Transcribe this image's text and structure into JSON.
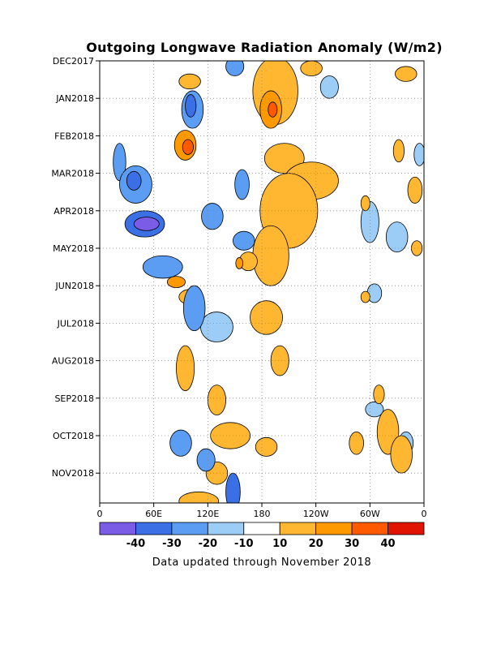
{
  "chart_data": {
    "type": "heatmap",
    "title": "Outgoing Longwave Radiation Anomaly (W/m2)",
    "note": "Data updated through November 2018",
    "y_axis": {
      "direction": "time increasing downward",
      "ticks": [
        "DEC2017",
        "JAN2018",
        "FEB2018",
        "MAR2018",
        "APR2018",
        "MAY2018",
        "JUN2018",
        "JUL2018",
        "AUG2018",
        "SEP2018",
        "OCT2018",
        "NOV2018"
      ]
    },
    "x_axis": {
      "range_deg_east": [
        0,
        360
      ],
      "ticks": [
        {
          "lon": 0,
          "label": "0"
        },
        {
          "lon": 60,
          "label": "60E"
        },
        {
          "lon": 120,
          "label": "120E"
        },
        {
          "lon": 180,
          "label": "180"
        },
        {
          "lon": 240,
          "label": "120W"
        },
        {
          "lon": 300,
          "label": "60W"
        },
        {
          "lon": 360,
          "label": "0"
        }
      ]
    },
    "grid": true,
    "colorbar": {
      "colors": [
        "#7a5ce6",
        "#3b6fe6",
        "#5a9df2",
        "#9ccdf6",
        "#ffffff",
        "#ffb732",
        "#ff9900",
        "#ff5a00",
        "#e01400"
      ],
      "labels": [
        "-40",
        "-30",
        "-20",
        "-10",
        "10",
        "20",
        "30",
        "40"
      ]
    },
    "anomaly_regions": [
      {
        "lon": 22,
        "t": 2.7,
        "rx": 7,
        "ry": 0.5,
        "lvl": -2
      },
      {
        "lon": 40,
        "t": 3.3,
        "rx": 18,
        "ry": 0.5,
        "lvl": -2
      },
      {
        "lon": 38,
        "t": 3.2,
        "rx": 8,
        "ry": 0.25,
        "lvl": -3
      },
      {
        "lon": 50,
        "t": 4.35,
        "rx": 22,
        "ry": 0.35,
        "lvl": -3
      },
      {
        "lon": 52,
        "t": 4.35,
        "rx": 14,
        "ry": 0.18,
        "lvl": -4
      },
      {
        "lon": 70,
        "t": 5.5,
        "rx": 22,
        "ry": 0.3,
        "lvl": -2
      },
      {
        "lon": 103,
        "t": 1.3,
        "rx": 12,
        "ry": 0.5,
        "lvl": -2
      },
      {
        "lon": 101,
        "t": 1.2,
        "rx": 6,
        "ry": 0.3,
        "lvl": -3
      },
      {
        "lon": 125,
        "t": 4.15,
        "rx": 12,
        "ry": 0.35,
        "lvl": -2
      },
      {
        "lon": 158,
        "t": 3.3,
        "rx": 8,
        "ry": 0.4,
        "lvl": -2
      },
      {
        "lon": 160,
        "t": 4.8,
        "rx": 12,
        "ry": 0.25,
        "lvl": -2
      },
      {
        "lon": 105,
        "t": 6.6,
        "rx": 12,
        "ry": 0.6,
        "lvl": -2
      },
      {
        "lon": 130,
        "t": 7.1,
        "rx": 18,
        "ry": 0.4,
        "lvl": -1
      },
      {
        "lon": 90,
        "t": 10.2,
        "rx": 12,
        "ry": 0.35,
        "lvl": -2
      },
      {
        "lon": 118,
        "t": 10.65,
        "rx": 10,
        "ry": 0.3,
        "lvl": -2
      },
      {
        "lon": 148,
        "t": 11.5,
        "rx": 8,
        "ry": 0.5,
        "lvl": -3
      },
      {
        "lon": 150,
        "t": 0.15,
        "rx": 10,
        "ry": 0.25,
        "lvl": -2
      },
      {
        "lon": 300,
        "t": 4.3,
        "rx": 10,
        "ry": 0.55,
        "lvl": -1
      },
      {
        "lon": 330,
        "t": 4.7,
        "rx": 12,
        "ry": 0.4,
        "lvl": -1
      },
      {
        "lon": 305,
        "t": 6.2,
        "rx": 8,
        "ry": 0.25,
        "lvl": -1
      },
      {
        "lon": 355,
        "t": 2.5,
        "rx": 6,
        "ry": 0.3,
        "lvl": -1
      },
      {
        "lon": 305,
        "t": 9.3,
        "rx": 10,
        "ry": 0.2,
        "lvl": -1
      },
      {
        "lon": 340,
        "t": 10.2,
        "rx": 8,
        "ry": 0.3,
        "lvl": -1
      },
      {
        "lon": 255,
        "t": 0.7,
        "rx": 10,
        "ry": 0.3,
        "lvl": -1
      },
      {
        "lon": 205,
        "t": 2.6,
        "rx": 22,
        "ry": 0.4,
        "lvl": 1
      },
      {
        "lon": 235,
        "t": 3.2,
        "rx": 30,
        "ry": 0.5,
        "lvl": 1
      },
      {
        "lon": 210,
        "t": 4.0,
        "rx": 32,
        "ry": 1.0,
        "lvl": 1
      },
      {
        "lon": 190,
        "t": 5.2,
        "rx": 20,
        "ry": 0.8,
        "lvl": 1
      },
      {
        "lon": 195,
        "t": 0.8,
        "rx": 25,
        "ry": 0.9,
        "lvl": 1
      },
      {
        "lon": 190,
        "t": 1.3,
        "rx": 12,
        "ry": 0.5,
        "lvl": 2
      },
      {
        "lon": 192,
        "t": 1.3,
        "rx": 5,
        "ry": 0.2,
        "lvl": 3
      },
      {
        "lon": 235,
        "t": 0.2,
        "rx": 12,
        "ry": 0.2,
        "lvl": 1
      },
      {
        "lon": 95,
        "t": 2.25,
        "rx": 12,
        "ry": 0.4,
        "lvl": 2
      },
      {
        "lon": 98,
        "t": 2.3,
        "rx": 6,
        "ry": 0.2,
        "lvl": 3
      },
      {
        "lon": 100,
        "t": 0.55,
        "rx": 12,
        "ry": 0.2,
        "lvl": 1
      },
      {
        "lon": 165,
        "t": 5.35,
        "rx": 10,
        "ry": 0.25,
        "lvl": 1
      },
      {
        "lon": 100,
        "t": 6.3,
        "rx": 12,
        "ry": 0.2,
        "lvl": 1
      },
      {
        "lon": 185,
        "t": 6.85,
        "rx": 18,
        "ry": 0.45,
        "lvl": 1
      },
      {
        "lon": 95,
        "t": 8.2,
        "rx": 10,
        "ry": 0.6,
        "lvl": 1
      },
      {
        "lon": 130,
        "t": 9.05,
        "rx": 10,
        "ry": 0.4,
        "lvl": 1
      },
      {
        "lon": 200,
        "t": 8.0,
        "rx": 10,
        "ry": 0.4,
        "lvl": 1
      },
      {
        "lon": 145,
        "t": 10.0,
        "rx": 22,
        "ry": 0.35,
        "lvl": 1
      },
      {
        "lon": 185,
        "t": 10.3,
        "rx": 12,
        "ry": 0.25,
        "lvl": 1
      },
      {
        "lon": 130,
        "t": 11.0,
        "rx": 12,
        "ry": 0.3,
        "lvl": 1
      },
      {
        "lon": 110,
        "t": 11.75,
        "rx": 22,
        "ry": 0.25,
        "lvl": 1
      },
      {
        "lon": 85,
        "t": 5.9,
        "rx": 10,
        "ry": 0.15,
        "lvl": 2
      },
      {
        "lon": 155,
        "t": 5.4,
        "rx": 4,
        "ry": 0.15,
        "lvl": 2
      },
      {
        "lon": 350,
        "t": 3.45,
        "rx": 8,
        "ry": 0.35,
        "lvl": 1
      },
      {
        "lon": 340,
        "t": 0.35,
        "rx": 12,
        "ry": 0.2,
        "lvl": 1
      },
      {
        "lon": 320,
        "t": 9.9,
        "rx": 12,
        "ry": 0.6,
        "lvl": 1
      },
      {
        "lon": 335,
        "t": 10.5,
        "rx": 12,
        "ry": 0.5,
        "lvl": 1
      },
      {
        "lon": 285,
        "t": 10.2,
        "rx": 8,
        "ry": 0.3,
        "lvl": 1
      },
      {
        "lon": 310,
        "t": 8.9,
        "rx": 6,
        "ry": 0.25,
        "lvl": 1
      },
      {
        "lon": 332,
        "t": 2.4,
        "rx": 6,
        "ry": 0.3,
        "lvl": 1
      },
      {
        "lon": 295,
        "t": 3.8,
        "rx": 5,
        "ry": 0.2,
        "lvl": 1
      },
      {
        "lon": 295,
        "t": 6.3,
        "rx": 5,
        "ry": 0.15,
        "lvl": 1
      },
      {
        "lon": 352,
        "t": 5.0,
        "rx": 6,
        "ry": 0.2,
        "lvl": 1
      }
    ]
  }
}
